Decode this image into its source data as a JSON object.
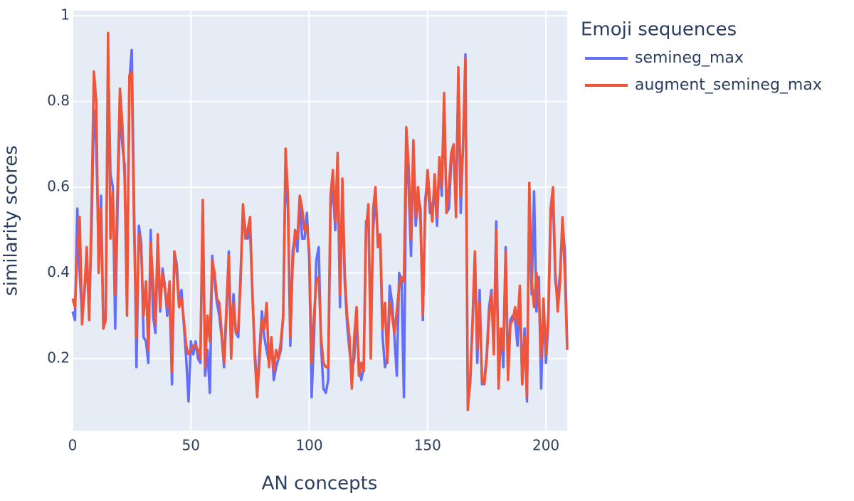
{
  "chart_data": {
    "type": "line",
    "xlabel": "AN concepts",
    "ylabel": "similarity scores",
    "legend_title": "Emoji sequences",
    "legend_position": "right",
    "xlim": [
      0,
      209
    ],
    "ylim": [
      0.032,
      1.012
    ],
    "xticks": [
      0,
      50,
      100,
      150,
      200
    ],
    "yticks": [
      0.2,
      0.4,
      0.6,
      0.8,
      1
    ],
    "grid": true,
    "x": [
      0,
      1,
      2,
      3,
      4,
      5,
      6,
      7,
      8,
      9,
      10,
      11,
      12,
      13,
      14,
      15,
      16,
      17,
      18,
      19,
      20,
      21,
      22,
      23,
      24,
      25,
      26,
      27,
      28,
      29,
      30,
      31,
      32,
      33,
      34,
      35,
      36,
      37,
      38,
      39,
      40,
      41,
      42,
      43,
      44,
      45,
      46,
      47,
      48,
      49,
      50,
      51,
      52,
      53,
      54,
      55,
      56,
      57,
      58,
      59,
      60,
      61,
      62,
      63,
      64,
      65,
      66,
      67,
      68,
      69,
      70,
      71,
      72,
      73,
      74,
      75,
      76,
      77,
      78,
      79,
      80,
      81,
      82,
      83,
      84,
      85,
      86,
      87,
      88,
      89,
      90,
      91,
      92,
      93,
      94,
      95,
      96,
      97,
      98,
      99,
      100,
      101,
      102,
      103,
      104,
      105,
      106,
      107,
      108,
      109,
      110,
      111,
      112,
      113,
      114,
      115,
      116,
      117,
      118,
      119,
      120,
      121,
      122,
      123,
      124,
      125,
      126,
      127,
      128,
      129,
      130,
      131,
      132,
      133,
      134,
      135,
      136,
      137,
      138,
      139,
      140,
      141,
      142,
      143,
      144,
      145,
      146,
      147,
      148,
      149,
      150,
      151,
      152,
      153,
      154,
      155,
      156,
      157,
      158,
      159,
      160,
      161,
      162,
      163,
      164,
      165,
      166,
      167,
      168,
      169,
      170,
      171,
      172,
      173,
      174,
      175,
      176,
      177,
      178,
      179,
      180,
      181,
      182,
      183,
      184,
      185,
      186,
      187,
      188,
      189,
      190,
      191,
      192,
      193,
      194,
      195,
      196,
      197,
      198,
      199,
      200,
      201,
      202,
      203,
      204,
      205,
      206,
      207,
      208,
      209
    ],
    "series": [
      {
        "name": "semineg_max",
        "color": "#636efa",
        "values": [
          0.31,
          0.29,
          0.55,
          0.4,
          0.3,
          0.35,
          0.44,
          0.3,
          0.5,
          0.78,
          0.7,
          0.45,
          0.58,
          0.28,
          0.3,
          0.9,
          0.63,
          0.6,
          0.27,
          0.55,
          0.78,
          0.7,
          0.65,
          0.32,
          0.85,
          0.92,
          0.55,
          0.18,
          0.51,
          0.47,
          0.25,
          0.24,
          0.19,
          0.5,
          0.3,
          0.26,
          0.46,
          0.31,
          0.41,
          0.37,
          0.3,
          0.35,
          0.14,
          0.45,
          0.42,
          0.33,
          0.36,
          0.28,
          0.2,
          0.1,
          0.24,
          0.21,
          0.24,
          0.2,
          0.19,
          0.55,
          0.16,
          0.22,
          0.12,
          0.44,
          0.38,
          0.33,
          0.3,
          0.25,
          0.18,
          0.3,
          0.45,
          0.24,
          0.35,
          0.26,
          0.25,
          0.4,
          0.55,
          0.5,
          0.48,
          0.5,
          0.35,
          0.22,
          0.12,
          0.22,
          0.31,
          0.25,
          0.22,
          0.19,
          0.24,
          0.15,
          0.18,
          0.2,
          0.22,
          0.3,
          0.65,
          0.55,
          0.23,
          0.45,
          0.49,
          0.45,
          0.57,
          0.48,
          0.48,
          0.54,
          0.43,
          0.11,
          0.25,
          0.43,
          0.46,
          0.23,
          0.13,
          0.12,
          0.15,
          0.55,
          0.6,
          0.5,
          0.65,
          0.32,
          0.6,
          0.38,
          0.28,
          0.22,
          0.17,
          0.2,
          0.3,
          0.18,
          0.15,
          0.18,
          0.52,
          0.53,
          0.24,
          0.5,
          0.58,
          0.48,
          0.47,
          0.25,
          0.18,
          0.2,
          0.37,
          0.33,
          0.25,
          0.16,
          0.4,
          0.38,
          0.11,
          0.7,
          0.6,
          0.44,
          0.68,
          0.51,
          0.58,
          0.55,
          0.29,
          0.57,
          0.62,
          0.54,
          0.55,
          0.6,
          0.51,
          0.66,
          0.58,
          0.8,
          0.54,
          0.55,
          0.66,
          0.68,
          0.55,
          0.85,
          0.54,
          0.7,
          0.91,
          0.1,
          0.14,
          0.28,
          0.43,
          0.19,
          0.36,
          0.14,
          0.15,
          0.21,
          0.32,
          0.36,
          0.22,
          0.52,
          0.16,
          0.27,
          0.18,
          0.46,
          0.17,
          0.29,
          0.3,
          0.29,
          0.23,
          0.35,
          0.14,
          0.27,
          0.1,
          0.58,
          0.35,
          0.59,
          0.31,
          0.39,
          0.13,
          0.33,
          0.19,
          0.28,
          0.52,
          0.58,
          0.38,
          0.34,
          0.4,
          0.52,
          0.45,
          0.23
        ]
      },
      {
        "name": "augment_semineg_max",
        "color": "#ef553b",
        "values": [
          0.34,
          0.32,
          0.45,
          0.53,
          0.28,
          0.36,
          0.46,
          0.29,
          0.55,
          0.87,
          0.8,
          0.4,
          0.55,
          0.27,
          0.29,
          0.96,
          0.48,
          0.59,
          0.35,
          0.6,
          0.83,
          0.75,
          0.62,
          0.3,
          0.86,
          0.87,
          0.5,
          0.25,
          0.49,
          0.45,
          0.3,
          0.38,
          0.22,
          0.47,
          0.38,
          0.28,
          0.49,
          0.32,
          0.4,
          0.36,
          0.32,
          0.38,
          0.17,
          0.45,
          0.4,
          0.32,
          0.34,
          0.29,
          0.23,
          0.21,
          0.22,
          0.23,
          0.23,
          0.22,
          0.2,
          0.57,
          0.18,
          0.3,
          0.24,
          0.43,
          0.4,
          0.34,
          0.33,
          0.26,
          0.19,
          0.32,
          0.44,
          0.2,
          0.33,
          0.26,
          0.27,
          0.38,
          0.56,
          0.48,
          0.5,
          0.53,
          0.35,
          0.2,
          0.11,
          0.2,
          0.29,
          0.27,
          0.33,
          0.18,
          0.25,
          0.17,
          0.22,
          0.2,
          0.24,
          0.3,
          0.69,
          0.58,
          0.25,
          0.42,
          0.5,
          0.48,
          0.58,
          0.55,
          0.5,
          0.51,
          0.45,
          0.19,
          0.3,
          0.38,
          0.39,
          0.25,
          0.19,
          0.18,
          0.18,
          0.58,
          0.64,
          0.52,
          0.68,
          0.35,
          0.62,
          0.4,
          0.3,
          0.25,
          0.13,
          0.25,
          0.32,
          0.16,
          0.19,
          0.17,
          0.5,
          0.56,
          0.2,
          0.55,
          0.6,
          0.46,
          0.49,
          0.27,
          0.33,
          0.19,
          0.33,
          0.3,
          0.26,
          0.31,
          0.37,
          0.39,
          0.38,
          0.74,
          0.65,
          0.48,
          0.71,
          0.53,
          0.6,
          0.52,
          0.3,
          0.55,
          0.64,
          0.57,
          0.52,
          0.63,
          0.53,
          0.67,
          0.6,
          0.82,
          0.54,
          0.6,
          0.68,
          0.7,
          0.53,
          0.88,
          0.58,
          0.7,
          0.9,
          0.08,
          0.15,
          0.29,
          0.45,
          0.22,
          0.33,
          0.15,
          0.14,
          0.2,
          0.3,
          0.35,
          0.21,
          0.5,
          0.13,
          0.27,
          0.22,
          0.45,
          0.15,
          0.28,
          0.29,
          0.32,
          0.28,
          0.37,
          0.14,
          0.25,
          0.11,
          0.61,
          0.38,
          0.32,
          0.4,
          0.35,
          0.2,
          0.34,
          0.21,
          0.3,
          0.55,
          0.6,
          0.4,
          0.31,
          0.38,
          0.53,
          0.4,
          0.22
        ]
      }
    ]
  }
}
